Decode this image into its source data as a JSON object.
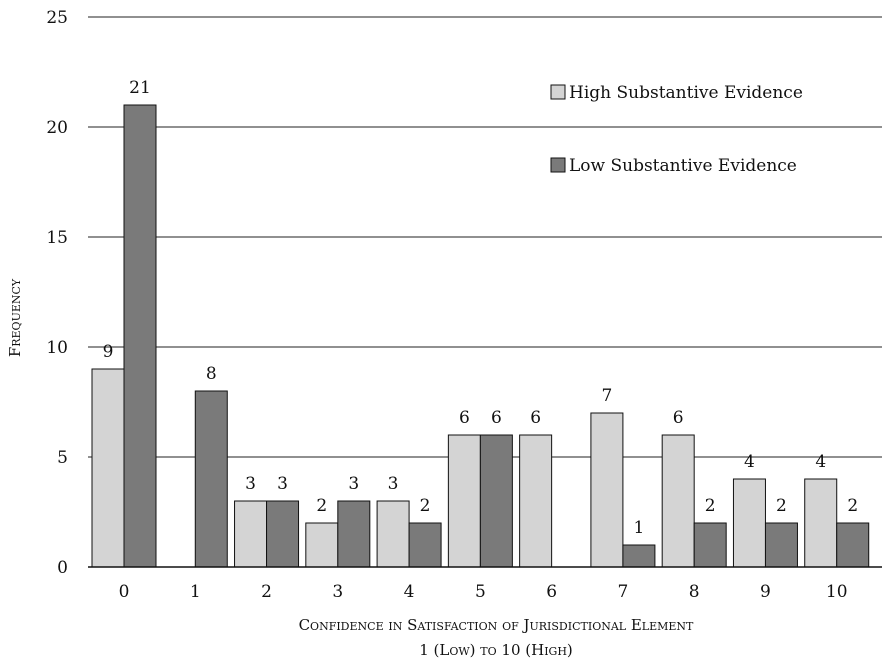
{
  "chart_data": {
    "type": "bar",
    "title": "",
    "xlabel": "Confidence in Satisfaction of Jurisdictional Element",
    "xlabel2": "1 (Low) to 10 (High)",
    "ylabel": "Frequency",
    "ylim": [
      0,
      25
    ],
    "yticks": [
      "0",
      "5",
      "10",
      "15",
      "20",
      "25"
    ],
    "categories": [
      "0",
      "1",
      "2",
      "3",
      "4",
      "5",
      "6",
      "7",
      "8",
      "9",
      "10"
    ],
    "grid": true,
    "legend_position": "top-right",
    "series": [
      {
        "name": "High Substantive Evidence",
        "color": "#d4d4d4",
        "values": [
          9,
          0,
          3,
          2,
          3,
          6,
          6,
          7,
          6,
          4,
          4
        ],
        "labels": [
          "9",
          "",
          "3",
          "2",
          "3",
          "6",
          "6",
          "7",
          "6",
          "4",
          "4"
        ]
      },
      {
        "name": "Low Substantive Evidence",
        "color": "#7a7a7a",
        "values": [
          21,
          8,
          3,
          3,
          2,
          6,
          0,
          1,
          2,
          2,
          2
        ],
        "labels": [
          "21",
          "8",
          "3",
          "3",
          "2",
          "6",
          "",
          "1",
          "2",
          "2",
          "2"
        ]
      }
    ]
  }
}
